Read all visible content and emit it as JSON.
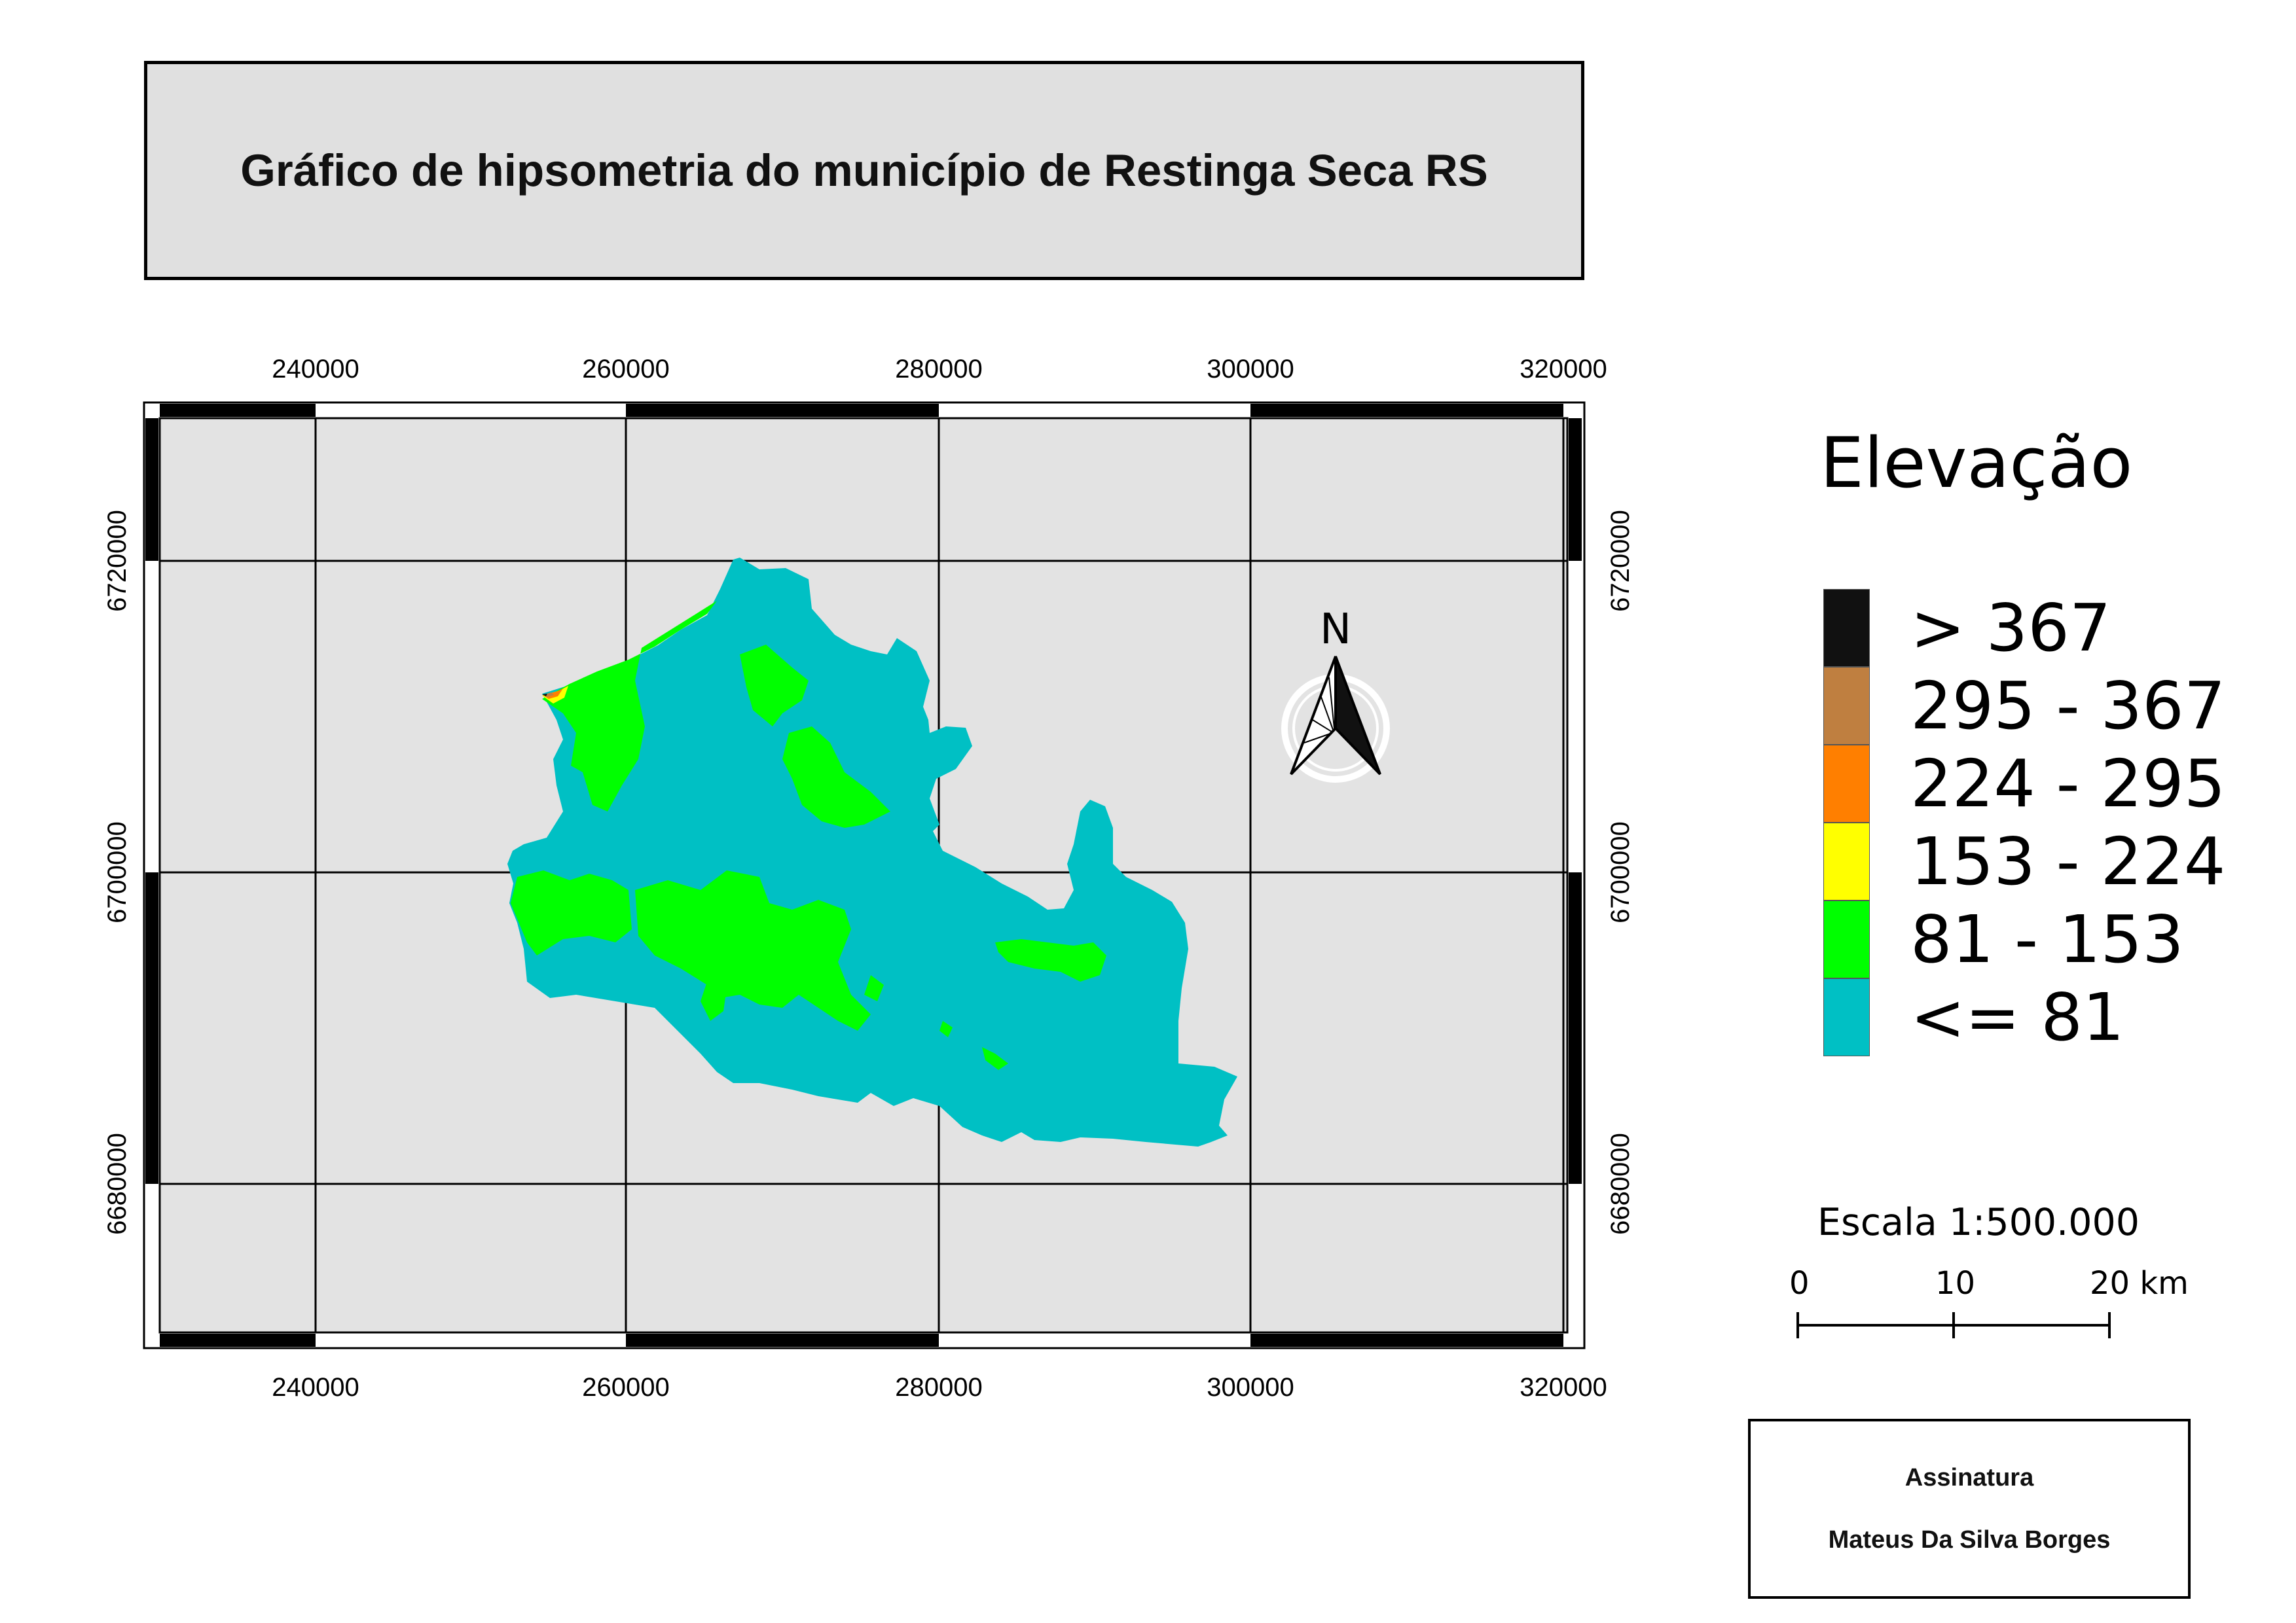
{
  "title": "Gráfico de hipsometria do município de Restinga Seca RS",
  "colors": {
    "map_background": "#e3e3e3",
    "frame_black": "#000000",
    "class_le_81": "#00c0c4",
    "class_81_153": "#00ff00",
    "class_153_224": "#ffff00",
    "class_224_295": "#ff7f00",
    "class_295_367": "#bf7f40",
    "class_gt_367": "#111111"
  },
  "axes": {
    "easting_labels": [
      "240000",
      "260000",
      "280000",
      "300000",
      "320000"
    ],
    "northing_labels": [
      "6720000",
      "6700000",
      "6680000"
    ]
  },
  "north_arrow": {
    "label": "N",
    "icon": "north-arrow-icon"
  },
  "legend": {
    "title": "Elevação",
    "items": [
      {
        "label": "> 367",
        "color": "#111111"
      },
      {
        "label": "295 - 367",
        "color": "#bf7f40"
      },
      {
        "label": "224 - 295",
        "color": "#ff7f00"
      },
      {
        "label": "153 - 224",
        "color": "#ffff00"
      },
      {
        "label": "81 - 153",
        "color": "#00ff00"
      },
      {
        "label": "<= 81",
        "color": "#00c0c4"
      }
    ]
  },
  "scale": {
    "title": "Escala 1:500.000",
    "labels": [
      "0",
      "10",
      "20 km"
    ]
  },
  "signature": {
    "heading": "Assinatura",
    "name": "Mateus Da Silva Borges"
  }
}
